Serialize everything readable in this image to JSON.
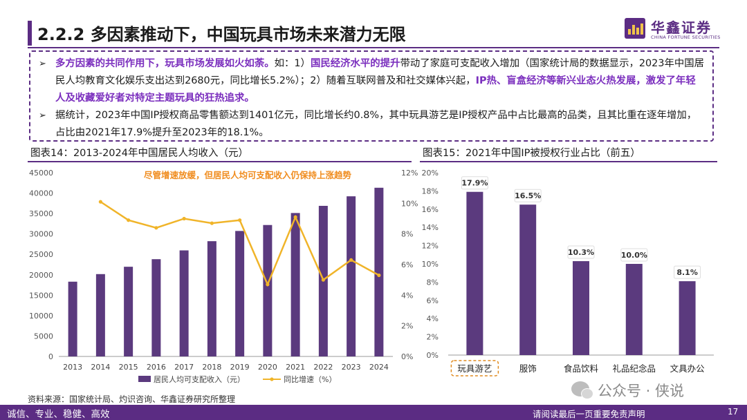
{
  "header": {
    "title": "2.2.2 多因素推动下，中国玩具市场未来潜力无限",
    "logo_name": "华鑫证券",
    "logo_en": "CHINA FORTUNE SECURITIES"
  },
  "text_box": {
    "p1": {
      "s1": "多方因素的共同作用下，玩具市场发展如火如荼。",
      "s2": "如：1）",
      "s3": "国民经济水平的提升",
      "s4": "带动了家庭可支配收入增加（国家统计局的数据显示，2023年中国居民人均教育文化娱乐支出达到2680元，同比增长5.2%）；2）随着互联网普及和社交媒体兴起，",
      "s5": "IP热、盲盒经济等新兴业态火热发展，激发了年轻人及收藏爱好者对特定主题玩具的狂热追求。"
    },
    "p2": "据统计，2023年中国IP授权商品零售额达到1401亿元，同比增长约0.8%，其中玩具游艺是IP授权产品中占比最高的品类，且其比重在逐年增加，占比由2021年17.9%提升至2023年的18.1%。"
  },
  "chart_data": [
    {
      "type": "bar",
      "title": "图表14：2013-2024年中国居民人均收入（元）",
      "annotation": "尽管增速放缓，但居民人均可支配收入仍保持上涨趋势",
      "categories": [
        "2013",
        "2014",
        "2015",
        "2016",
        "2017",
        "2018",
        "2019",
        "2020",
        "2021",
        "2022",
        "2023",
        "2024"
      ],
      "series": [
        {
          "name": "居民人均可支配收入（元）",
          "type": "bar",
          "axis": "left",
          "color": "#5b3a7e",
          "values": [
            18311,
            20167,
            21966,
            23821,
            25974,
            28228,
            30733,
            32189,
            35128,
            36883,
            39218,
            41314
          ]
        },
        {
          "name": "同比增速（%）",
          "type": "line",
          "axis": "right",
          "color": "#f0b429",
          "values": [
            null,
            10.1,
            8.9,
            8.4,
            9.0,
            8.7,
            8.9,
            4.7,
            9.1,
            5.0,
            6.3,
            5.3
          ]
        }
      ],
      "y_left": {
        "min": 0,
        "max": 45000,
        "step": 5000
      },
      "y_right": {
        "min": 0,
        "max": 12,
        "step": 2,
        "suffix": "%"
      },
      "legend_position": "bottom"
    },
    {
      "type": "bar",
      "title": "图表15：2021年中国IP被授权行业占比（前五）",
      "categories": [
        "玩具游艺",
        "服饰",
        "食品饮料",
        "礼品纪念品",
        "文具办公"
      ],
      "values": [
        17.9,
        16.5,
        10.3,
        10.0,
        8.1
      ],
      "data_labels": [
        "17.9%",
        "16.5%",
        "10.3%",
        "10.0%",
        "8.1%"
      ],
      "color": "#5b3a7e",
      "highlight_category": "玩具游艺",
      "y_axis": {
        "min": 0,
        "max": 20,
        "step": 2,
        "suffix": "%"
      }
    }
  ],
  "source": "资料来源：国家统计局、灼识咨询、华鑫证券研究所整理",
  "footer": {
    "left": "诚信、专业、稳健、高效",
    "right": "请阅读最后一页重要免责声明",
    "page": "17"
  },
  "watermark": "公众号 · 侠说",
  "colors": {
    "brand": "#5b2c83",
    "highlight_text": "#7b2fbe",
    "annotation": "#f08c1e",
    "bar": "#5b3a7e",
    "line": "#f0b429"
  }
}
